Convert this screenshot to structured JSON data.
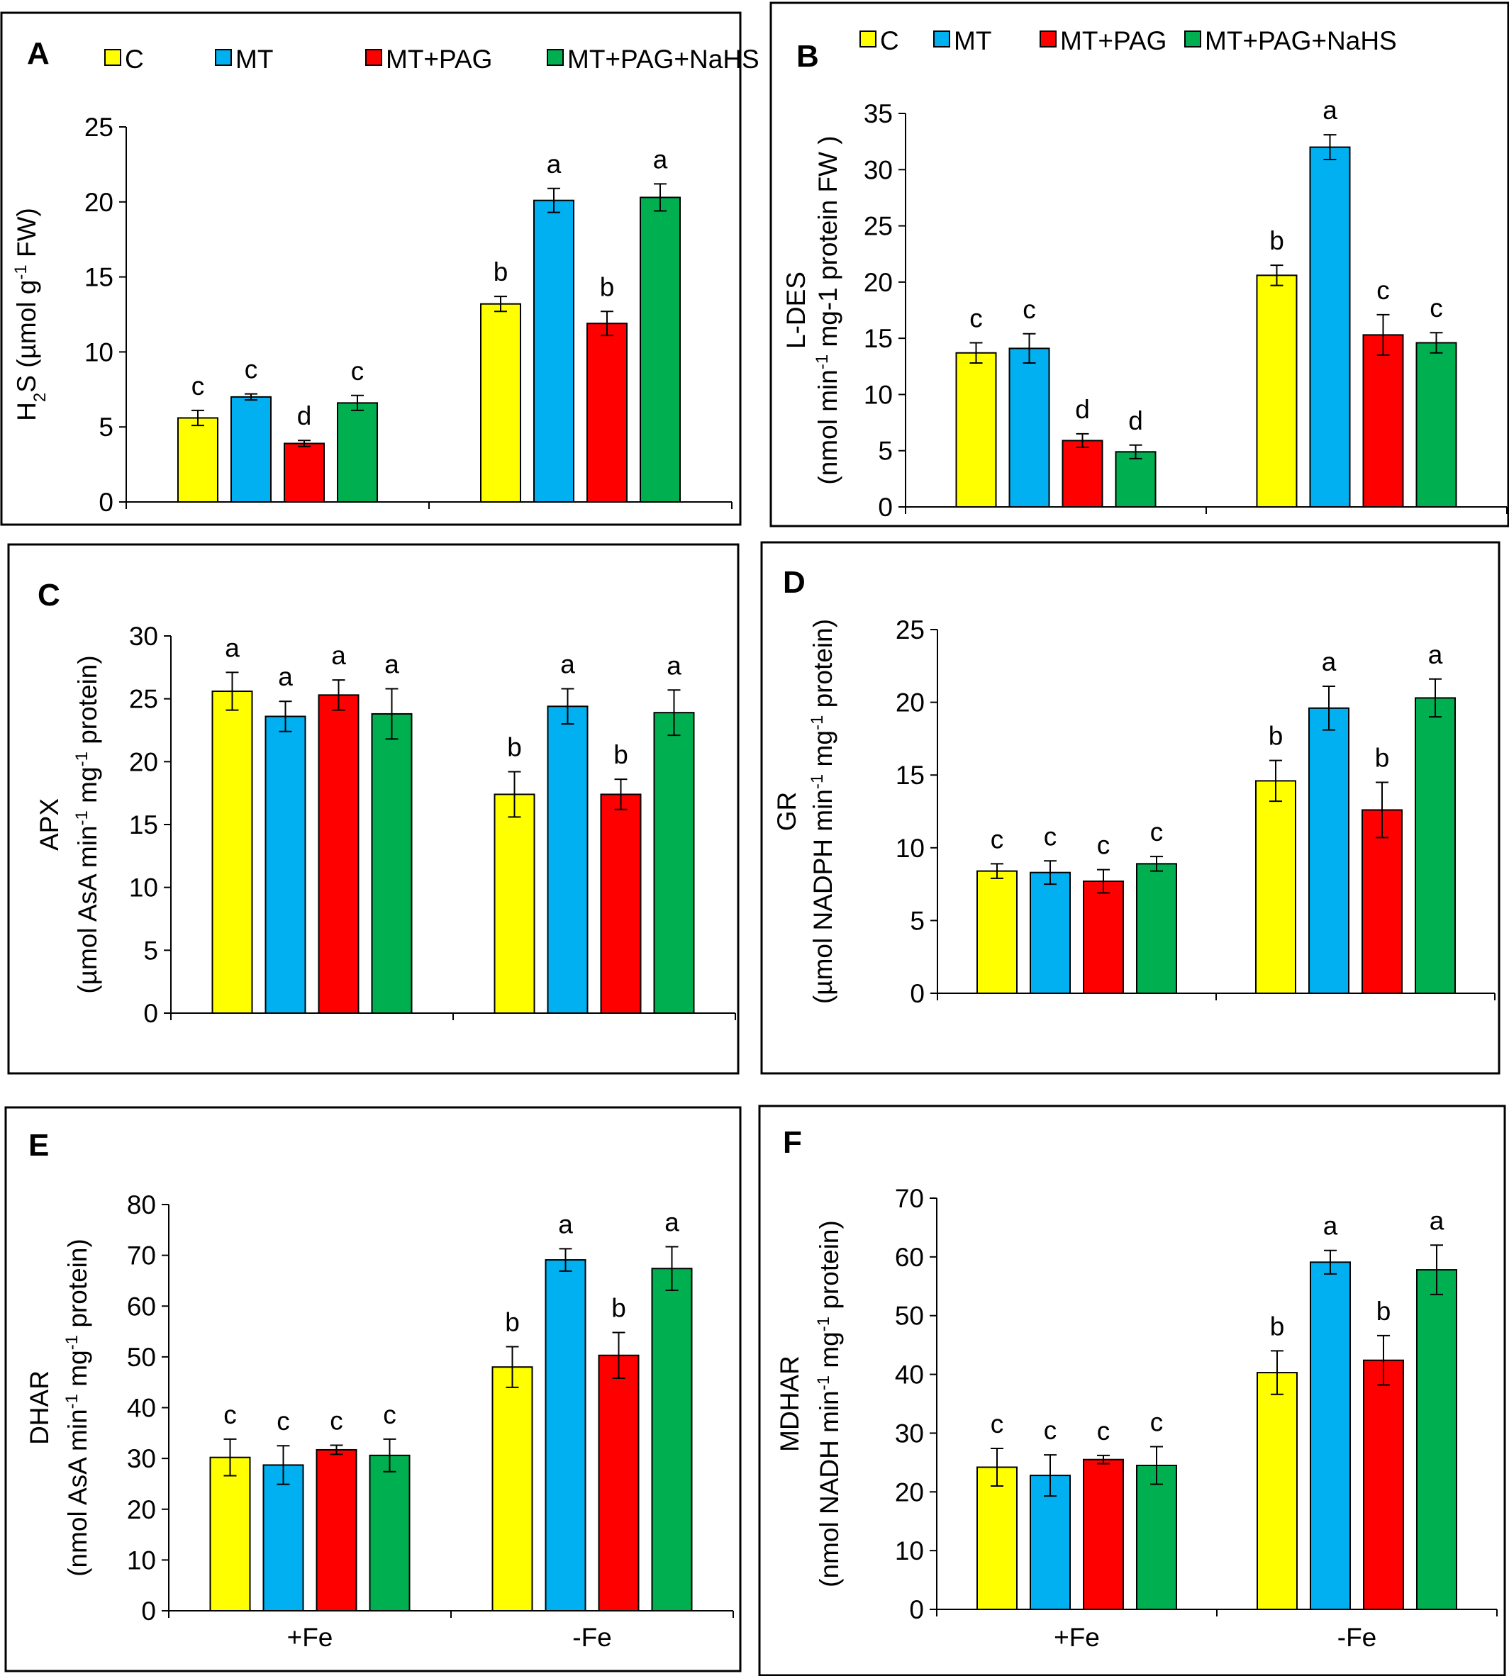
{
  "legend_items": [
    "C",
    "MT",
    "MT+PAG",
    "MT+PAG+NaHS"
  ],
  "colors": {
    "C": "#ffff00",
    "MT": "#00b0f0",
    "MT+PAG": "#ff0000",
    "MT+PAG+NaHS": "#00b050",
    "stroke": "#000000"
  },
  "chart_data": [
    {
      "panel": "A",
      "type": "bar",
      "legend": "top",
      "categories": [
        "",
        ""
      ],
      "ylabel_lines": [
        {
          "parts": [
            [
              "H",
              ""
            ],
            [
              "2",
              "sub"
            ],
            [
              "S (µmol g",
              ""
            ],
            [
              "-1",
              "sup"
            ],
            [
              " FW)",
              ""
            ]
          ]
        }
      ],
      "ylim": [
        0,
        25
      ],
      "yticks": [
        0,
        5,
        10,
        15,
        20,
        25
      ],
      "series": [
        {
          "name": "C",
          "values": [
            5.6,
            13.2
          ],
          "errors": [
            0.5,
            0.5
          ],
          "letters": [
            "c",
            "b"
          ]
        },
        {
          "name": "MT",
          "values": [
            7.0,
            20.1
          ],
          "errors": [
            0.2,
            0.8
          ],
          "letters": [
            "c",
            "a"
          ]
        },
        {
          "name": "MT+PAG",
          "values": [
            3.9,
            11.9
          ],
          "errors": [
            0.2,
            0.8
          ],
          "letters": [
            "d",
            "b"
          ]
        },
        {
          "name": "MT+PAG+NaHS",
          "values": [
            6.6,
            20.3
          ],
          "errors": [
            0.5,
            0.9
          ],
          "letters": [
            "c",
            "a"
          ]
        }
      ]
    },
    {
      "panel": "B",
      "type": "bar",
      "legend": "top",
      "categories": [
        "",
        ""
      ],
      "ylabel_lines": [
        {
          "parts": [
            [
              "L-DES",
              ""
            ]
          ]
        },
        {
          "parts": [
            [
              "(nmol min",
              ""
            ],
            [
              "-1",
              "sup"
            ],
            [
              " mg-1 protein FW )",
              ""
            ]
          ]
        }
      ],
      "ylim": [
        0,
        35
      ],
      "yticks": [
        0,
        5,
        10,
        15,
        20,
        25,
        30,
        35
      ],
      "series": [
        {
          "name": "C",
          "values": [
            13.7,
            20.6
          ],
          "errors": [
            0.9,
            0.9
          ],
          "letters": [
            "c",
            "b"
          ]
        },
        {
          "name": "MT",
          "values": [
            14.1,
            32.0
          ],
          "errors": [
            1.3,
            1.1
          ],
          "letters": [
            "c",
            "a"
          ]
        },
        {
          "name": "MT+PAG",
          "values": [
            5.9,
            15.3
          ],
          "errors": [
            0.6,
            1.8
          ],
          "letters": [
            "d",
            "c"
          ]
        },
        {
          "name": "MT+PAG+NaHS",
          "values": [
            4.9,
            14.6
          ],
          "errors": [
            0.6,
            0.9
          ],
          "letters": [
            "d",
            "c"
          ]
        }
      ]
    },
    {
      "panel": "C",
      "type": "bar",
      "legend": "none",
      "categories": [
        "",
        ""
      ],
      "ylabel_lines": [
        {
          "parts": [
            [
              "APX",
              ""
            ]
          ]
        },
        {
          "parts": [
            [
              "(µmol AsA min",
              ""
            ],
            [
              "-1",
              "sup"
            ],
            [
              " mg",
              ""
            ],
            [
              "-1",
              "sup"
            ],
            [
              " protein)",
              ""
            ]
          ]
        }
      ],
      "ylim": [
        0,
        30
      ],
      "yticks": [
        0,
        5,
        10,
        15,
        20,
        25,
        30
      ],
      "series": [
        {
          "name": "C",
          "values": [
            25.6,
            17.4
          ],
          "errors": [
            1.5,
            1.8
          ],
          "letters": [
            "a",
            "b"
          ]
        },
        {
          "name": "MT",
          "values": [
            23.6,
            24.4
          ],
          "errors": [
            1.2,
            1.4
          ],
          "letters": [
            "a",
            "a"
          ]
        },
        {
          "name": "MT+PAG",
          "values": [
            25.3,
            17.4
          ],
          "errors": [
            1.2,
            1.2
          ],
          "letters": [
            "a",
            "b"
          ]
        },
        {
          "name": "MT+PAG+NaHS",
          "values": [
            23.8,
            23.9
          ],
          "errors": [
            2.0,
            1.8
          ],
          "letters": [
            "a",
            "a"
          ]
        }
      ]
    },
    {
      "panel": "D",
      "type": "bar",
      "legend": "none",
      "categories": [
        "",
        ""
      ],
      "ylabel_lines": [
        {
          "parts": [
            [
              "GR",
              ""
            ]
          ]
        },
        {
          "parts": [
            [
              "(µmol NADPH min",
              ""
            ],
            [
              "-1",
              "sup"
            ],
            [
              " mg",
              ""
            ],
            [
              "-1",
              "sup"
            ],
            [
              " protein)",
              ""
            ]
          ]
        }
      ],
      "ylim": [
        0,
        25
      ],
      "yticks": [
        0,
        5,
        10,
        15,
        20,
        25
      ],
      "series": [
        {
          "name": "C",
          "values": [
            8.4,
            14.6
          ],
          "errors": [
            0.5,
            1.4
          ],
          "letters": [
            "c",
            "b"
          ]
        },
        {
          "name": "MT",
          "values": [
            8.3,
            19.6
          ],
          "errors": [
            0.8,
            1.5
          ],
          "letters": [
            "c",
            "a"
          ]
        },
        {
          "name": "MT+PAG",
          "values": [
            7.7,
            12.6
          ],
          "errors": [
            0.8,
            1.9
          ],
          "letters": [
            "c",
            "b"
          ]
        },
        {
          "name": "MT+PAG+NaHS",
          "values": [
            8.9,
            20.3
          ],
          "errors": [
            0.5,
            1.3
          ],
          "letters": [
            "c",
            "a"
          ]
        }
      ]
    },
    {
      "panel": "E",
      "type": "bar",
      "legend": "none",
      "categories": [
        "+Fe",
        "-Fe"
      ],
      "ylabel_lines": [
        {
          "parts": [
            [
              "DHAR",
              ""
            ]
          ]
        },
        {
          "parts": [
            [
              "(nmol AsA min",
              ""
            ],
            [
              "-1",
              "sup"
            ],
            [
              " mg",
              ""
            ],
            [
              "-1",
              "sup"
            ],
            [
              " protein)",
              ""
            ]
          ]
        }
      ],
      "ylim": [
        0,
        80
      ],
      "yticks": [
        0,
        10,
        20,
        30,
        40,
        50,
        60,
        70,
        80
      ],
      "series": [
        {
          "name": "C",
          "values": [
            30.2,
            48.0
          ],
          "errors": [
            3.6,
            4.0
          ],
          "letters": [
            "c",
            "b"
          ]
        },
        {
          "name": "MT",
          "values": [
            28.7,
            69.1
          ],
          "errors": [
            3.8,
            2.2
          ],
          "letters": [
            "c",
            "a"
          ]
        },
        {
          "name": "MT+PAG",
          "values": [
            31.7,
            50.3
          ],
          "errors": [
            0.9,
            4.5
          ],
          "letters": [
            "c",
            "b"
          ]
        },
        {
          "name": "MT+PAG+NaHS",
          "values": [
            30.6,
            67.4
          ],
          "errors": [
            3.2,
            4.3
          ],
          "letters": [
            "c",
            "a"
          ]
        }
      ]
    },
    {
      "panel": "F",
      "type": "bar",
      "legend": "none",
      "categories": [
        "+Fe",
        "-Fe"
      ],
      "ylabel_lines": [
        {
          "parts": [
            [
              "MDHAR",
              ""
            ]
          ]
        },
        {
          "parts": [
            [
              "(nmol NADH min",
              ""
            ],
            [
              "-1",
              "sup"
            ],
            [
              " mg",
              ""
            ],
            [
              "-1",
              "sup"
            ],
            [
              " protein)",
              ""
            ]
          ]
        }
      ],
      "ylim": [
        0,
        70
      ],
      "yticks": [
        0,
        10,
        20,
        30,
        40,
        50,
        60,
        70
      ],
      "series": [
        {
          "name": "C",
          "values": [
            24.2,
            40.3
          ],
          "errors": [
            3.2,
            3.7
          ],
          "letters": [
            "c",
            "b"
          ]
        },
        {
          "name": "MT",
          "values": [
            22.8,
            59.1
          ],
          "errors": [
            3.5,
            2.0
          ],
          "letters": [
            "c",
            "a"
          ]
        },
        {
          "name": "MT+PAG",
          "values": [
            25.5,
            42.4
          ],
          "errors": [
            0.7,
            4.2
          ],
          "letters": [
            "c",
            "b"
          ]
        },
        {
          "name": "MT+PAG+NaHS",
          "values": [
            24.5,
            57.8
          ],
          "errors": [
            3.2,
            4.2
          ],
          "letters": [
            "c",
            "a"
          ]
        }
      ]
    }
  ]
}
